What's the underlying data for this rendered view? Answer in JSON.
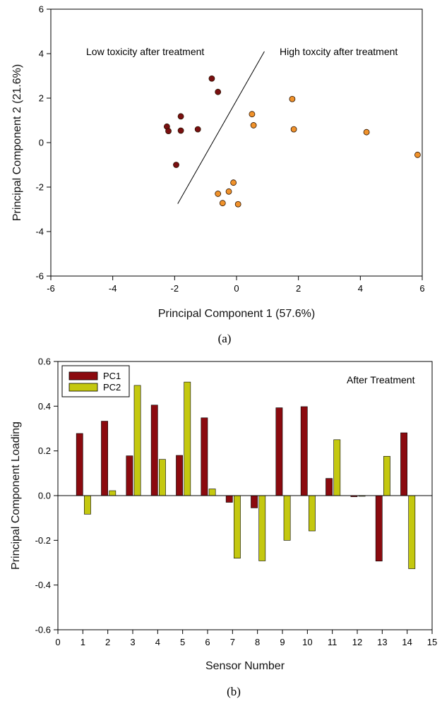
{
  "chart_data": [
    {
      "type": "scatter",
      "panel_label": "(a)",
      "xlabel": "Principal Component 1 (57.6%)",
      "ylabel": "Principal Component 2 (21.6%)",
      "xlim": [
        -6,
        6
      ],
      "ylim": [
        -6,
        6
      ],
      "xticks": [
        -6,
        -4,
        -2,
        0,
        2,
        4,
        6
      ],
      "yticks": [
        -6,
        -4,
        -2,
        0,
        2,
        4,
        6
      ],
      "annotations": {
        "left": "Low toxicity after treatment",
        "right": "High toxcity after treatment"
      },
      "divider": [
        [
          -1.9,
          -2.75
        ],
        [
          0.9,
          4.1
        ]
      ],
      "series": [
        {
          "name": "Low toxicity",
          "color": "#7a0f10",
          "points": [
            [
              -0.8,
              2.88
            ],
            [
              -0.6,
              2.28
            ],
            [
              -1.8,
              1.18
            ],
            [
              -2.25,
              0.72
            ],
            [
              -2.2,
              0.52
            ],
            [
              -1.8,
              0.54
            ],
            [
              -1.25,
              0.6
            ],
            [
              -1.95,
              -1.0
            ]
          ]
        },
        {
          "name": "High toxicity",
          "color": "#f0922b",
          "points": [
            [
              1.8,
              1.96
            ],
            [
              0.5,
              1.28
            ],
            [
              0.55,
              0.78
            ],
            [
              1.85,
              0.6
            ],
            [
              4.2,
              0.47
            ],
            [
              5.85,
              -0.55
            ],
            [
              -0.1,
              -1.8
            ],
            [
              -0.25,
              -2.2
            ],
            [
              -0.6,
              -2.3
            ],
            [
              -0.45,
              -2.72
            ],
            [
              0.05,
              -2.77
            ]
          ]
        }
      ]
    },
    {
      "type": "bar",
      "panel_label": "(b)",
      "xlabel": "Sensor Number",
      "ylabel": "Principal Component Loading",
      "xlim": [
        0,
        15
      ],
      "ylim": [
        -0.6,
        0.6
      ],
      "xticks": [
        0,
        1,
        2,
        3,
        4,
        5,
        6,
        7,
        8,
        9,
        10,
        11,
        12,
        13,
        14,
        15
      ],
      "yticks": [
        -0.6,
        -0.4,
        -0.2,
        0.0,
        0.2,
        0.4,
        0.6
      ],
      "ytick_labels": [
        "-0.6",
        "-0.4",
        "-0.2",
        "0.0",
        "0.2",
        "0.4",
        "0.6"
      ],
      "annotation": "After Treatment",
      "legend_position": "top-left",
      "categories": [
        1,
        2,
        3,
        4,
        5,
        6,
        7,
        8,
        9,
        10,
        11,
        12,
        13,
        14
      ],
      "series": [
        {
          "name": "PC1",
          "color": "#8b0a0f",
          "values": [
            0.278,
            0.333,
            0.178,
            0.405,
            0.18,
            0.348,
            -0.03,
            -0.055,
            0.393,
            0.398,
            0.077,
            -0.005,
            -0.293,
            0.281
          ]
        },
        {
          "name": "PC2",
          "color": "#c4c80f",
          "values": [
            -0.083,
            0.022,
            0.493,
            0.162,
            0.508,
            0.03,
            -0.28,
            -0.292,
            -0.2,
            -0.158,
            0.25,
            -0.003,
            0.176,
            -0.327
          ]
        }
      ]
    }
  ]
}
